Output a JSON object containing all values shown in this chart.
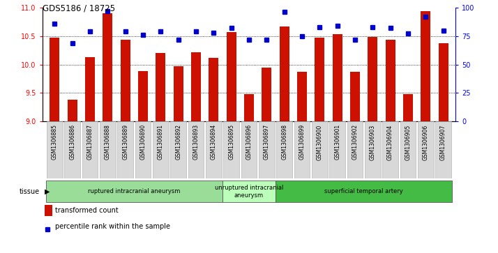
{
  "title": "GDS5186 / 18725",
  "samples": [
    "GSM1306885",
    "GSM1306886",
    "GSM1306887",
    "GSM1306888",
    "GSM1306889",
    "GSM1306890",
    "GSM1306891",
    "GSM1306892",
    "GSM1306893",
    "GSM1306894",
    "GSM1306895",
    "GSM1306896",
    "GSM1306897",
    "GSM1306898",
    "GSM1306899",
    "GSM1306900",
    "GSM1306901",
    "GSM1306902",
    "GSM1306903",
    "GSM1306904",
    "GSM1306905",
    "GSM1306906",
    "GSM1306907"
  ],
  "transformed_count": [
    10.47,
    9.38,
    10.13,
    10.9,
    10.44,
    9.88,
    10.2,
    9.97,
    10.22,
    10.12,
    10.57,
    9.48,
    9.94,
    10.67,
    9.87,
    10.47,
    10.53,
    9.87,
    10.49,
    10.44,
    9.48,
    10.94,
    10.38
  ],
  "percentile_rank": [
    86,
    69,
    79,
    97,
    79,
    76,
    79,
    72,
    79,
    78,
    82,
    72,
    72,
    96,
    75,
    83,
    84,
    72,
    83,
    82,
    77,
    92,
    80
  ],
  "ylim_left": [
    9,
    11
  ],
  "ylim_right": [
    0,
    100
  ],
  "yticks_left": [
    9,
    9.5,
    10,
    10.5,
    11
  ],
  "yticks_right": [
    0,
    25,
    50,
    75,
    100
  ],
  "bar_color": "#cc1100",
  "dot_color": "#0000cc",
  "groups": [
    {
      "label": "ruptured intracranial aneurysm",
      "start": 0,
      "end": 10,
      "color": "#99dd99"
    },
    {
      "label": "unruptured intracranial\naneurysm",
      "start": 10,
      "end": 13,
      "color": "#bbffbb"
    },
    {
      "label": "superficial temporal artery",
      "start": 13,
      "end": 23,
      "color": "#44bb44"
    }
  ],
  "legend_bar_label": "transformed count",
  "legend_dot_label": "percentile rank within the sample",
  "tissue_label": "tissue",
  "xlabel_bg": "#d8d8d8"
}
